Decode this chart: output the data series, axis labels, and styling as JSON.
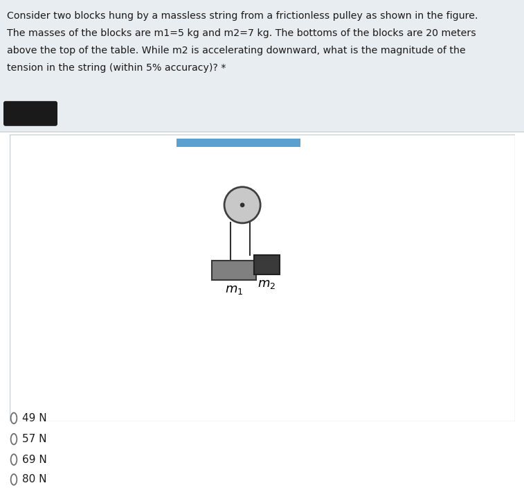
{
  "question_text_lines": [
    "Consider two blocks hung by a massless string from a frictionless pulley as shown in the figure.",
    "The masses of the blocks are m1=5 kg and m2=7 kg. The bottoms of the blocks are 20 meters",
    "above the top of the table. While m2 is accelerating downward, what is the magnitude of the",
    "tension in the string (within 5% accuracy)? *"
  ],
  "answer_choices": [
    "49 N",
    "57 N",
    "69 N",
    "80 N"
  ],
  "bg_question_color": "#e8edf2",
  "bg_figure_color": "#ffffff",
  "bg_main_color": "#ffffff",
  "header_bar_color": "#5aa0d0",
  "m1_color": "#808080",
  "m2_color": "#3a3a3a",
  "pulley_color": "#c8c8c8",
  "pulley_outline_color": "#404040",
  "string_color": "#303030",
  "label_color": "#000000",
  "radio_circle_color": "#707070",
  "figure_border": "#c8cdd2",
  "question_border": "#c8cdd2",
  "redact_color": "#1a1a1a"
}
